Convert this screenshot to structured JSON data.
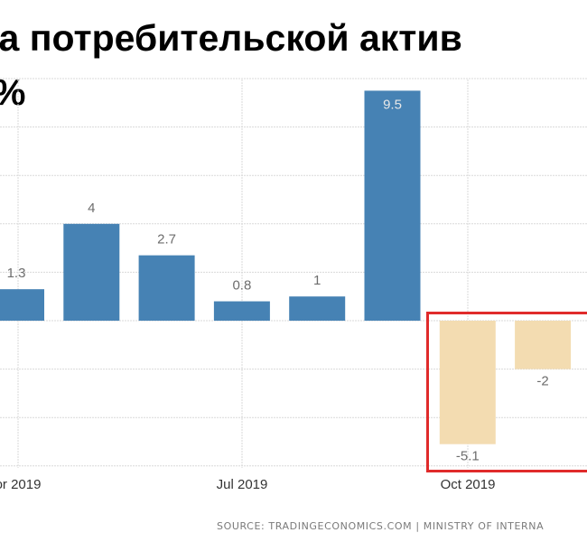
{
  "title_lines": [
    "ка потребительской актив",
    "%"
  ],
  "source": "SOURCE: TRADINGECONOMICS.COM  |  MINISTRY OF INTERNA",
  "colors": {
    "positive": "#4682b4",
    "negative": "#f3dcb1",
    "highlight": "#e02b2b",
    "grid": "#d9d9d9",
    "label": "#6d6d6d"
  },
  "chart_data": {
    "type": "bar",
    "categories": [
      "",
      "",
      "",
      "",
      "",
      "",
      "",
      ""
    ],
    "values": [
      1.3,
      4,
      2.7,
      0.8,
      1,
      9.5,
      -5.1,
      -2
    ],
    "labels": [
      "1.3",
      "4",
      "2.7",
      "0.8",
      "1",
      "9.5",
      "-5.1",
      "-2"
    ],
    "xticks": [
      "or 2019",
      "Jul 2019",
      "Oct 2019"
    ],
    "ylim": [
      -6,
      10
    ],
    "grid": true,
    "title": "ка потребительской актив %"
  }
}
